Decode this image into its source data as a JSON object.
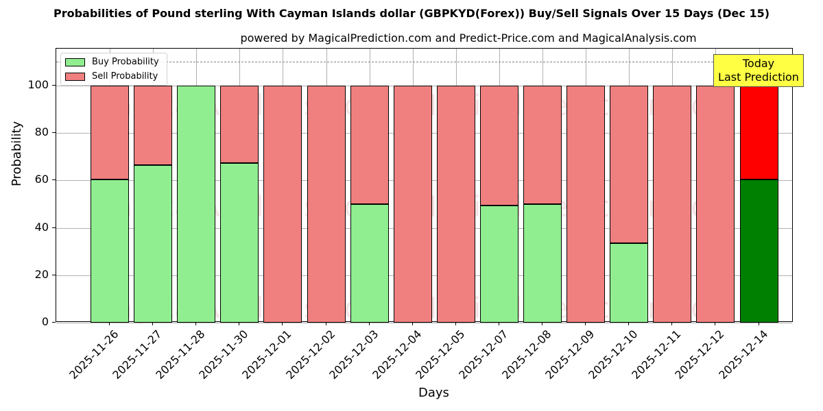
{
  "header": {
    "title": "Probabilities of Pound sterling With Cayman Islands dollar (GBPKYD(Forex)) Buy/Sell Signals Over 15 Days (Dec 15)",
    "subtitle": "powered by MagicalPrediction.com and Predict-Price.com and MagicalAnalysis.com"
  },
  "legend": {
    "buy_label": "Buy Probability",
    "sell_label": "Sell Probability"
  },
  "annotation": {
    "line1": "Today",
    "line2": "Last Prediction"
  },
  "axes": {
    "xlabel": "Days",
    "ylabel": "Probability",
    "yticks": [
      "0",
      "20",
      "40",
      "60",
      "80",
      "100"
    ]
  },
  "watermarks": [
    "MagicalAnalysis.com",
    "MagicalPrediction.com"
  ],
  "colors": {
    "buy": "#90ee90",
    "sell": "#f08080",
    "buy_today": "#008000",
    "sell_today": "#ff0000",
    "annotation_bg": "#ffff44"
  },
  "chart_data": {
    "type": "bar",
    "stacked": true,
    "title": "Probabilities of Pound sterling With Cayman Islands dollar (GBPKYD(Forex)) Buy/Sell Signals Over 15 Days (Dec 15)",
    "subtitle": "powered by MagicalPrediction.com and Predict-Price.com and MagicalAnalysis.com",
    "xlabel": "Days",
    "ylabel": "Probability",
    "ylim": [
      0,
      115
    ],
    "yticks": [
      0,
      20,
      40,
      60,
      80,
      100
    ],
    "reference_line": {
      "y": 110,
      "style": "dashed"
    },
    "grid": true,
    "legend_position": "upper left",
    "categories": [
      "2025-11-26",
      "2025-11-27",
      "2025-11-28",
      "2025-11-30",
      "2025-12-01",
      "2025-12-02",
      "2025-12-03",
      "2025-12-04",
      "2025-12-05",
      "2025-12-07",
      "2025-12-08",
      "2025-12-09",
      "2025-12-10",
      "2025-12-11",
      "2025-12-12",
      "2025-12-14"
    ],
    "series": [
      {
        "name": "Buy Probability",
        "values": [
          60.3,
          66.4,
          100,
          67.2,
          0,
          0,
          50.0,
          0,
          0,
          49.3,
          50.0,
          0,
          33.4,
          0,
          0,
          60.3
        ]
      },
      {
        "name": "Sell Probability",
        "values": [
          39.7,
          33.6,
          0,
          32.8,
          100,
          100,
          50.0,
          100,
          100,
          50.7,
          50.0,
          100,
          66.6,
          100,
          100,
          39.7
        ]
      }
    ],
    "annotations": [
      {
        "text": "Today\nLast Prediction",
        "x": "2025-12-14"
      }
    ]
  }
}
